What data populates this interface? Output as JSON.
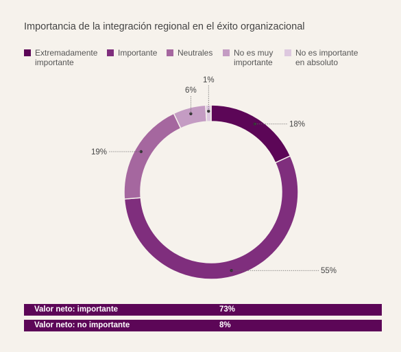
{
  "title": "Importancia de la integración regional en el éxito organizacional",
  "legend": [
    {
      "label": "Extremadamente\nimportante",
      "color": "#5c0657"
    },
    {
      "label": "Importante",
      "color": "#7f2e7d"
    },
    {
      "label": "Neutrales",
      "color": "#a5679f"
    },
    {
      "label": "No es muy\nimportante",
      "color": "#c49cc3"
    },
    {
      "label": "No es importante\nen absoluto",
      "color": "#ddc8df"
    }
  ],
  "chart_data": {
    "type": "pie",
    "donut": true,
    "categories": [
      "Extremadamente importante",
      "Importante",
      "Neutrales",
      "No es muy importante",
      "No es importante en absoluto"
    ],
    "values": [
      18,
      55,
      19,
      6,
      1
    ],
    "data_labels": [
      "18%",
      "55%",
      "19%",
      "6%",
      "1%"
    ],
    "colors": [
      "#5c0657",
      "#7f2e7d",
      "#a5679f",
      "#c49cc3",
      "#ddc8df"
    ]
  },
  "net_values": [
    {
      "label": "Valor neto: importante",
      "value": "73%",
      "color": "#5c0657"
    },
    {
      "label": "Valor neto: no importante",
      "value": "8%",
      "color": "#5c0657"
    }
  ]
}
